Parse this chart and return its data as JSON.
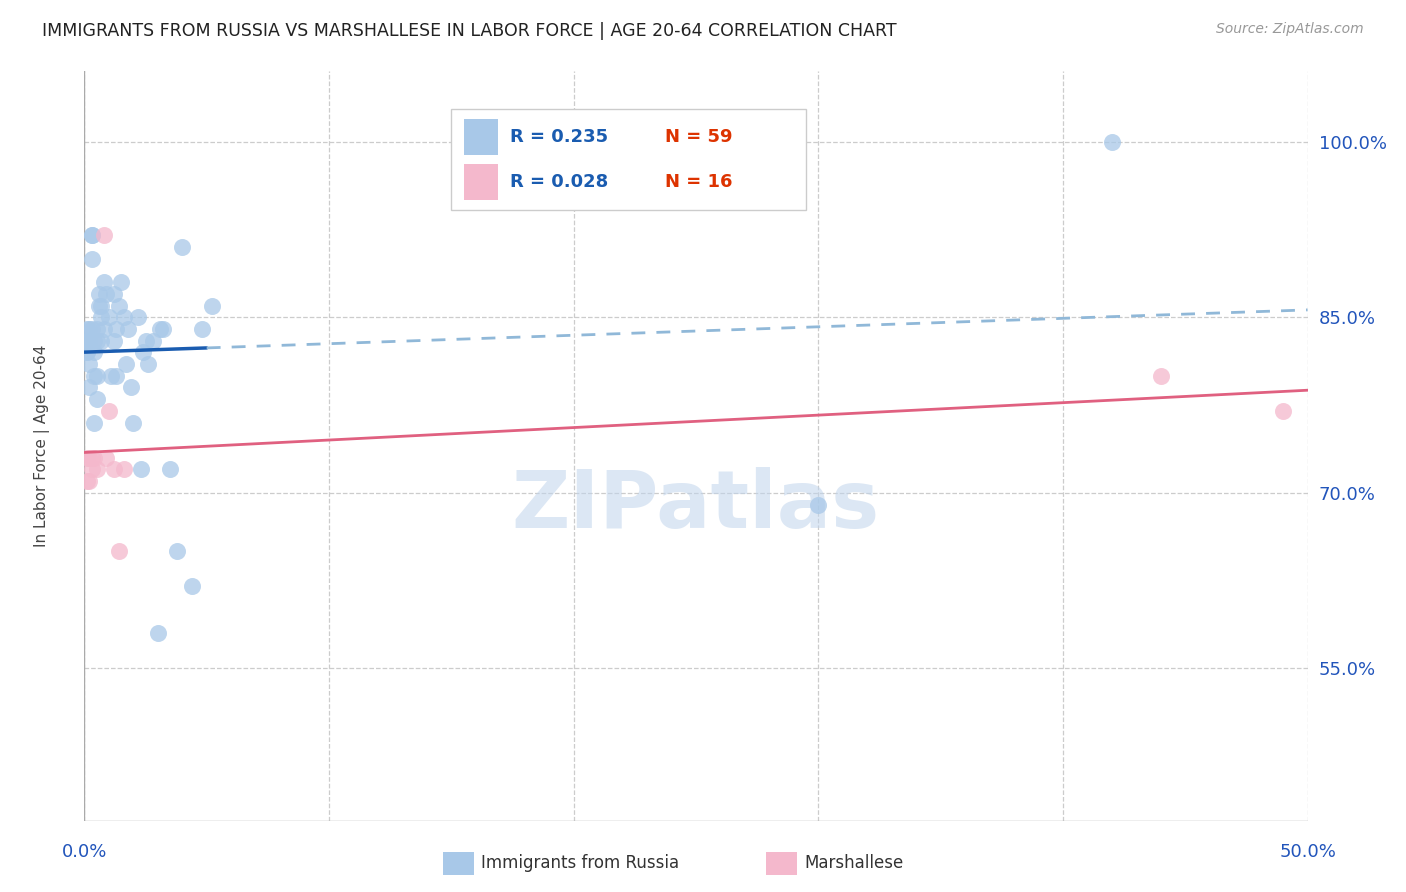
{
  "title": "IMMIGRANTS FROM RUSSIA VS MARSHALLESE IN LABOR FORCE | AGE 20-64 CORRELATION CHART",
  "source": "Source: ZipAtlas.com",
  "ylabel": "In Labor Force | Age 20-64",
  "ytick_vals": [
    1.0,
    0.85,
    0.7,
    0.55
  ],
  "ytick_labels": [
    "100.0%",
    "85.0%",
    "70.0%",
    "55.0%"
  ],
  "xlim": [
    0.0,
    0.5
  ],
  "ylim": [
    0.42,
    1.06
  ],
  "watermark": "ZIPatlas",
  "russia_R": "0.235",
  "russia_N": "59",
  "marsh_R": "0.028",
  "marsh_N": "16",
  "russia_color": "#a8c8e8",
  "marsh_color": "#f4b8cc",
  "russia_line_color": "#1a5cb0",
  "marsh_line_color": "#e06080",
  "russia_dash_color": "#90b8d8",
  "background": "#ffffff",
  "grid_color": "#cccccc",
  "title_color": "#222222",
  "source_color": "#999999",
  "legend_r_color": "#1a5cb0",
  "legend_n_color": "#dd3300",
  "russia_x": [
    0.001,
    0.001,
    0.001,
    0.001,
    0.002,
    0.002,
    0.002,
    0.002,
    0.002,
    0.003,
    0.003,
    0.003,
    0.003,
    0.004,
    0.004,
    0.004,
    0.004,
    0.005,
    0.005,
    0.005,
    0.005,
    0.006,
    0.006,
    0.007,
    0.007,
    0.007,
    0.008,
    0.008,
    0.009,
    0.01,
    0.011,
    0.012,
    0.012,
    0.013,
    0.013,
    0.014,
    0.015,
    0.016,
    0.017,
    0.018,
    0.019,
    0.02,
    0.022,
    0.023,
    0.024,
    0.025,
    0.026,
    0.028,
    0.03,
    0.031,
    0.032,
    0.035,
    0.038,
    0.04,
    0.044,
    0.048,
    0.052,
    0.3,
    0.42
  ],
  "russia_y": [
    0.84,
    0.82,
    0.83,
    0.82,
    0.84,
    0.83,
    0.83,
    0.81,
    0.79,
    0.92,
    0.9,
    0.92,
    0.84,
    0.83,
    0.82,
    0.8,
    0.76,
    0.84,
    0.83,
    0.8,
    0.78,
    0.87,
    0.86,
    0.86,
    0.85,
    0.83,
    0.88,
    0.84,
    0.87,
    0.85,
    0.8,
    0.87,
    0.83,
    0.84,
    0.8,
    0.86,
    0.88,
    0.85,
    0.81,
    0.84,
    0.79,
    0.76,
    0.85,
    0.72,
    0.82,
    0.83,
    0.81,
    0.83,
    0.58,
    0.84,
    0.84,
    0.72,
    0.65,
    0.91,
    0.62,
    0.84,
    0.86,
    0.69,
    1.0
  ],
  "marsh_x": [
    0.001,
    0.001,
    0.002,
    0.002,
    0.003,
    0.003,
    0.004,
    0.005,
    0.008,
    0.009,
    0.01,
    0.012,
    0.014,
    0.016,
    0.44,
    0.49
  ],
  "marsh_y": [
    0.73,
    0.71,
    0.73,
    0.71,
    0.72,
    0.73,
    0.73,
    0.72,
    0.92,
    0.73,
    0.77,
    0.72,
    0.65,
    0.72,
    0.8,
    0.77
  ],
  "russia_line_x0": 0.0,
  "russia_line_x_break": 0.05,
  "russia_line_x1": 0.5
}
